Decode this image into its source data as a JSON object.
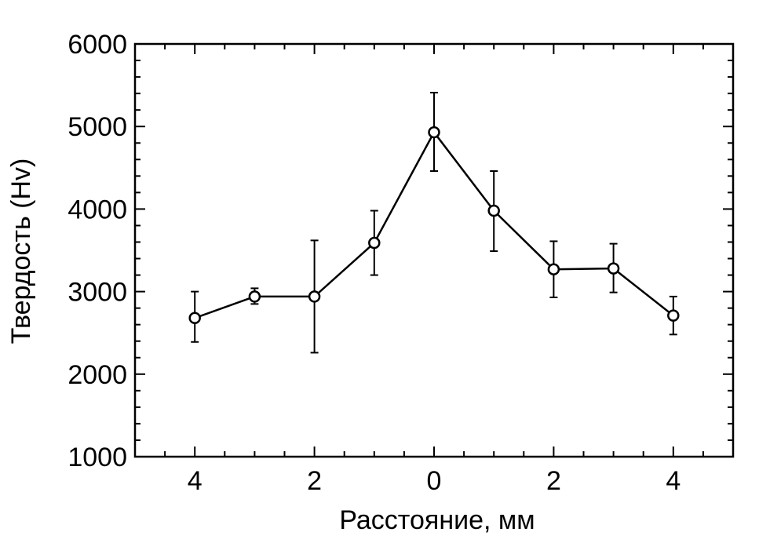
{
  "chart_data": {
    "type": "line",
    "title": "",
    "xlabel": "Расстояние, мм",
    "ylabel": "Твердость  (Hv)",
    "x_positions": [
      -4,
      -3,
      -2,
      -1,
      0,
      1,
      2,
      3,
      4
    ],
    "xlim": [
      -5,
      5
    ],
    "x_tick_positions": [
      -4,
      -2,
      0,
      2,
      4
    ],
    "x_tick_labels": [
      "4",
      "2",
      "0",
      "2",
      "4"
    ],
    "ylim": [
      1000,
      6000
    ],
    "y_ticks": [
      1000,
      2000,
      3000,
      4000,
      5000,
      6000
    ],
    "y_tick_labels": [
      "1000",
      "2000",
      "3000",
      "4000",
      "5000",
      "6000"
    ],
    "grid": false,
    "legend": "none",
    "marker": "open-circle",
    "color": "#000000",
    "series": [
      {
        "values": [
          2680,
          2940,
          2940,
          3590,
          4930,
          3980,
          3270,
          3280,
          2710
        ],
        "error_low": [
          2390,
          2850,
          2260,
          3200,
          4460,
          3490,
          2930,
          2990,
          2480
        ],
        "error_high": [
          3000,
          3040,
          3620,
          3980,
          5410,
          4460,
          3610,
          3580,
          2940
        ]
      }
    ]
  }
}
